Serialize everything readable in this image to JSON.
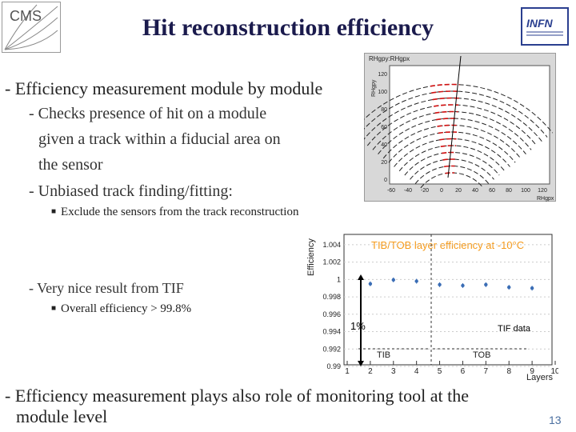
{
  "slide": {
    "title": "Hit reconstruction efficiency",
    "page_number": "13",
    "bullets": {
      "b1": "- Efficiency measurement module by module",
      "b1a": "- Checks presence of hit on a module",
      "b1a_cont1": "given a track within a fiducial area on",
      "b1a_cont2": "the sensor",
      "b1b": "- Unbiased track finding/fitting:",
      "b1b_sub": "Exclude the sensors from the track reconstruction",
      "b2": "- Very nice result from TIF",
      "b2_sub": "Overall efficiency > 99.8%",
      "b3": "- Efficiency measurement plays also role of monitoring tool at the",
      "b3_cont": "module level"
    },
    "logos": {
      "cms": "CMS",
      "infn": "INFN"
    }
  },
  "hitmap": {
    "label": "RHgpy:RHgpx",
    "ylabel": "RHgpy",
    "xlabel": "RHgpx",
    "x_ticks": [
      "-60",
      "-40",
      "-20",
      "0",
      "20",
      "40",
      "60",
      "80",
      "100",
      "120"
    ],
    "y_ticks": [
      "0",
      "20",
      "40",
      "60",
      "80",
      "100",
      "120"
    ]
  },
  "chart_data": {
    "type": "scatter",
    "title": "TIB/TOB layer efficiency at -10°C",
    "ylabel": "Efficiency",
    "xlabel": "Layers",
    "xlim": [
      1,
      10
    ],
    "ylim": [
      0.99,
      1.005
    ],
    "x_ticks": [
      "1",
      "2",
      "3",
      "4",
      "5",
      "6",
      "7",
      "8",
      "9",
      "10"
    ],
    "y_ticks": [
      "0.99",
      "0.992",
      "0.994",
      "0.996",
      "0.998",
      "1",
      "1.002",
      "1.004"
    ],
    "x": [
      2,
      3,
      4,
      5,
      6,
      7,
      8,
      9
    ],
    "y": [
      0.9995,
      0.99995,
      0.9998,
      0.9994,
      0.9993,
      0.9994,
      0.9991,
      0.999
    ],
    "annotations": {
      "scale": "1%",
      "source": "TIF data",
      "region_left": "TIB",
      "region_right": "TOB"
    }
  }
}
